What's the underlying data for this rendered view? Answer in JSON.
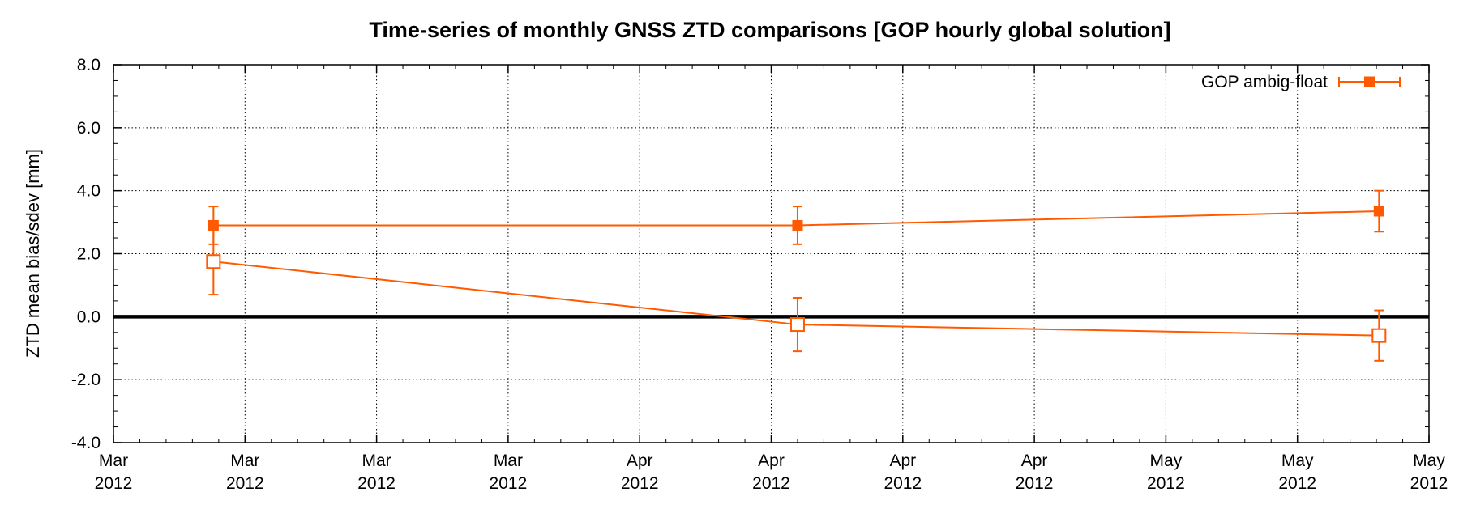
{
  "chart_data": {
    "type": "line",
    "title": "Time-series of monthly GNSS ZTD comparisons [GOP hourly global solution]",
    "xlabel": "",
    "ylabel": "ZTD mean bias/sdev [mm]",
    "ylim": [
      -4.0,
      8.0
    ],
    "y_ticks": [
      "-4.0",
      "-2.0",
      "0.0",
      "2.0",
      "4.0",
      "6.0",
      "8.0"
    ],
    "x_tick_labels": [
      {
        "month": "Mar",
        "year": "2012"
      },
      {
        "month": "Mar",
        "year": "2012"
      },
      {
        "month": "Mar",
        "year": "2012"
      },
      {
        "month": "Mar",
        "year": "2012"
      },
      {
        "month": "Apr",
        "year": "2012"
      },
      {
        "month": "Apr",
        "year": "2012"
      },
      {
        "month": "Apr",
        "year": "2012"
      },
      {
        "month": "Apr",
        "year": "2012"
      },
      {
        "month": "May",
        "year": "2012"
      },
      {
        "month": "May",
        "year": "2012"
      },
      {
        "month": "May",
        "year": "2012"
      }
    ],
    "xlim": [
      0,
      10
    ],
    "grid": true,
    "zero_line": true,
    "legend": {
      "position": "top-right",
      "label": "GOP ambig-float"
    },
    "series": [
      {
        "name": "GOP ambig-float",
        "marker": "filled-square",
        "points": [
          {
            "x": 0.76,
            "y": 2.9,
            "err": 0.6
          },
          {
            "x": 5.2,
            "y": 2.9,
            "err": 0.6
          },
          {
            "x": 9.62,
            "y": 3.35,
            "err": 0.65
          }
        ]
      },
      {
        "marker": "open-square",
        "points": [
          {
            "x": 0.76,
            "y": 1.75,
            "err": 1.05
          },
          {
            "x": 5.2,
            "y": -0.25,
            "err": 0.85
          },
          {
            "x": 9.62,
            "y": -0.6,
            "err": 0.8
          }
        ]
      }
    ],
    "colors": {
      "series": "#ff5a00",
      "zero_line": "#000000",
      "grid": "#000000"
    }
  }
}
